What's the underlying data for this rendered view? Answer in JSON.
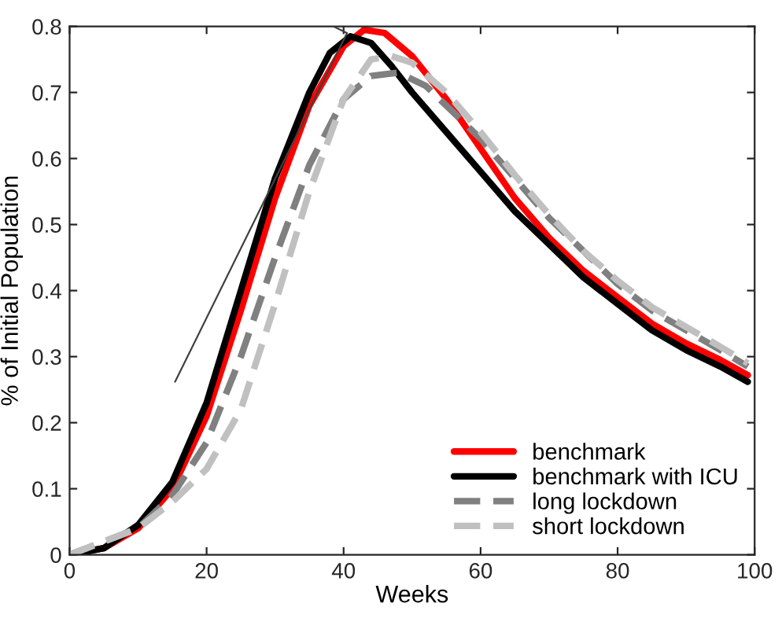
{
  "chart_data": {
    "type": "line",
    "xlabel": "Weeks",
    "ylabel": "% of Initial Population",
    "xlim": [
      0,
      100
    ],
    "ylim": [
      0,
      0.8
    ],
    "xticks": [
      0,
      20,
      40,
      60,
      80,
      100
    ],
    "yticks": [
      0,
      0.1,
      0.2,
      0.3,
      0.4,
      0.5,
      0.6,
      0.7,
      0.8
    ],
    "grid": false,
    "legend": "bottom right",
    "marker": "none",
    "series": [
      {
        "name": "benchmark",
        "color": "#ff0000",
        "line_style": "solid",
        "x": [
          0,
          5,
          10,
          15,
          20,
          25,
          30,
          35,
          40,
          43,
          46,
          50,
          55,
          60,
          65,
          70,
          75,
          80,
          85,
          90,
          95,
          99
        ],
        "values": [
          0,
          0.01,
          0.04,
          0.1,
          0.21,
          0.37,
          0.54,
          0.68,
          0.77,
          0.795,
          0.79,
          0.755,
          0.69,
          0.615,
          0.54,
          0.48,
          0.43,
          0.39,
          0.35,
          0.32,
          0.295,
          0.272
        ]
      },
      {
        "name": "benchmark with ICU",
        "color": "#000000",
        "line_style": "solid",
        "x": [
          0,
          5,
          10,
          15,
          20,
          25,
          30,
          35,
          38,
          41,
          44,
          47,
          50,
          55,
          60,
          65,
          70,
          75,
          80,
          85,
          90,
          95,
          99
        ],
        "values": [
          0,
          0.01,
          0.045,
          0.11,
          0.23,
          0.4,
          0.57,
          0.7,
          0.76,
          0.785,
          0.775,
          0.74,
          0.7,
          0.64,
          0.58,
          0.52,
          0.47,
          0.42,
          0.38,
          0.34,
          0.31,
          0.285,
          0.262
        ]
      },
      {
        "name": "long lockdown",
        "color": "#808080",
        "line_style": "dashed",
        "x": [
          0,
          10,
          15,
          20,
          25,
          30,
          35,
          40,
          44,
          48,
          52,
          56,
          60,
          65,
          70,
          75,
          80,
          85,
          90,
          95,
          99
        ],
        "values": [
          0,
          0.04,
          0.09,
          0.17,
          0.3,
          0.45,
          0.59,
          0.69,
          0.725,
          0.73,
          0.71,
          0.67,
          0.63,
          0.57,
          0.51,
          0.46,
          0.41,
          0.37,
          0.34,
          0.31,
          0.285
        ]
      },
      {
        "name": "short lockdown",
        "color": "#c0c0c0",
        "line_style": "dashed",
        "x": [
          0,
          10,
          15,
          20,
          25,
          30,
          35,
          40,
          44,
          47,
          50,
          55,
          60,
          65,
          70,
          75,
          80,
          85,
          90,
          95,
          99
        ],
        "values": [
          0,
          0.04,
          0.08,
          0.13,
          0.22,
          0.38,
          0.55,
          0.69,
          0.75,
          0.755,
          0.745,
          0.7,
          0.64,
          0.575,
          0.515,
          0.46,
          0.415,
          0.375,
          0.345,
          0.315,
          0.29
        ]
      },
      {
        "color": "#404040",
        "line_style": "solid",
        "x": [
          15.4,
          40.5,
          38.5
        ],
        "values": [
          0.262,
          0.79,
          0.8
        ]
      }
    ]
  }
}
